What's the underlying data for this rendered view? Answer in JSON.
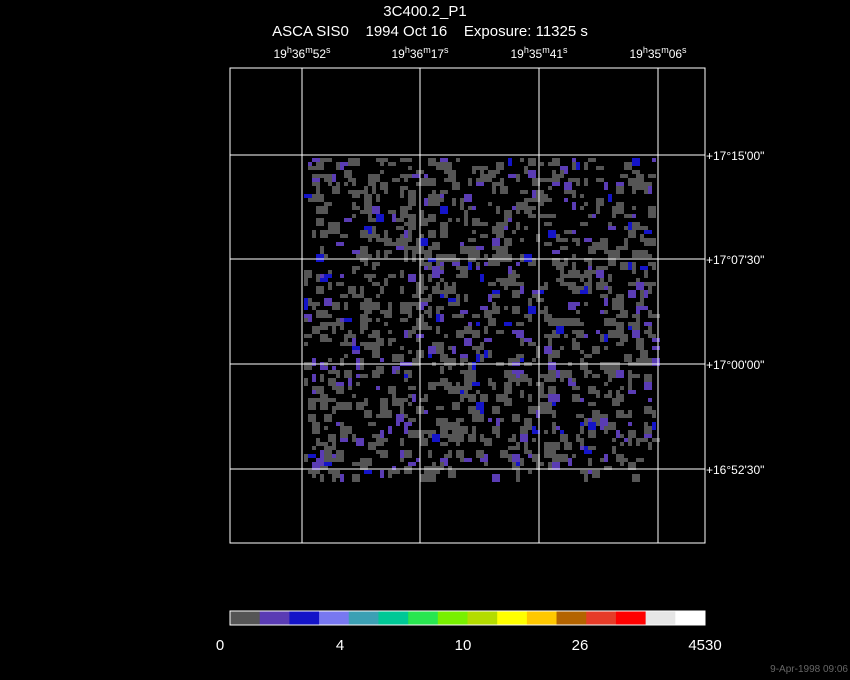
{
  "header": {
    "title": "3C400.2_P1",
    "subtitle": "ASCA SIS0    1994 Oct 16    Exposure: 11325 s"
  },
  "ra_labels": [
    [
      "19",
      "h",
      "36",
      "m",
      "52",
      "s"
    ],
    [
      "19",
      "h",
      "36",
      "m",
      "17",
      "s"
    ],
    [
      "19",
      "h",
      "35",
      "m",
      "41",
      "s"
    ],
    [
      "19",
      "h",
      "35",
      "m",
      "06",
      "s"
    ]
  ],
  "dec_labels": [
    "+17°15'00\"",
    "+17°07'30\"",
    "+17°00'00\"",
    "+16°52'30\""
  ],
  "colorbar": {
    "colors": [
      "#555555",
      "#5a3cb4",
      "#1414c8",
      "#7878f0",
      "#3ca0b4",
      "#00c896",
      "#28e650",
      "#78f000",
      "#b4dc00",
      "#ffff00",
      "#ffc800",
      "#b46400",
      "#e63c28",
      "#ff0000",
      "#e6e6e6",
      "#ffffff"
    ],
    "labels": [
      "0",
      "4",
      "10",
      "26",
      "4530"
    ]
  },
  "timestamp": "9-Apr-1998 09:06"
}
